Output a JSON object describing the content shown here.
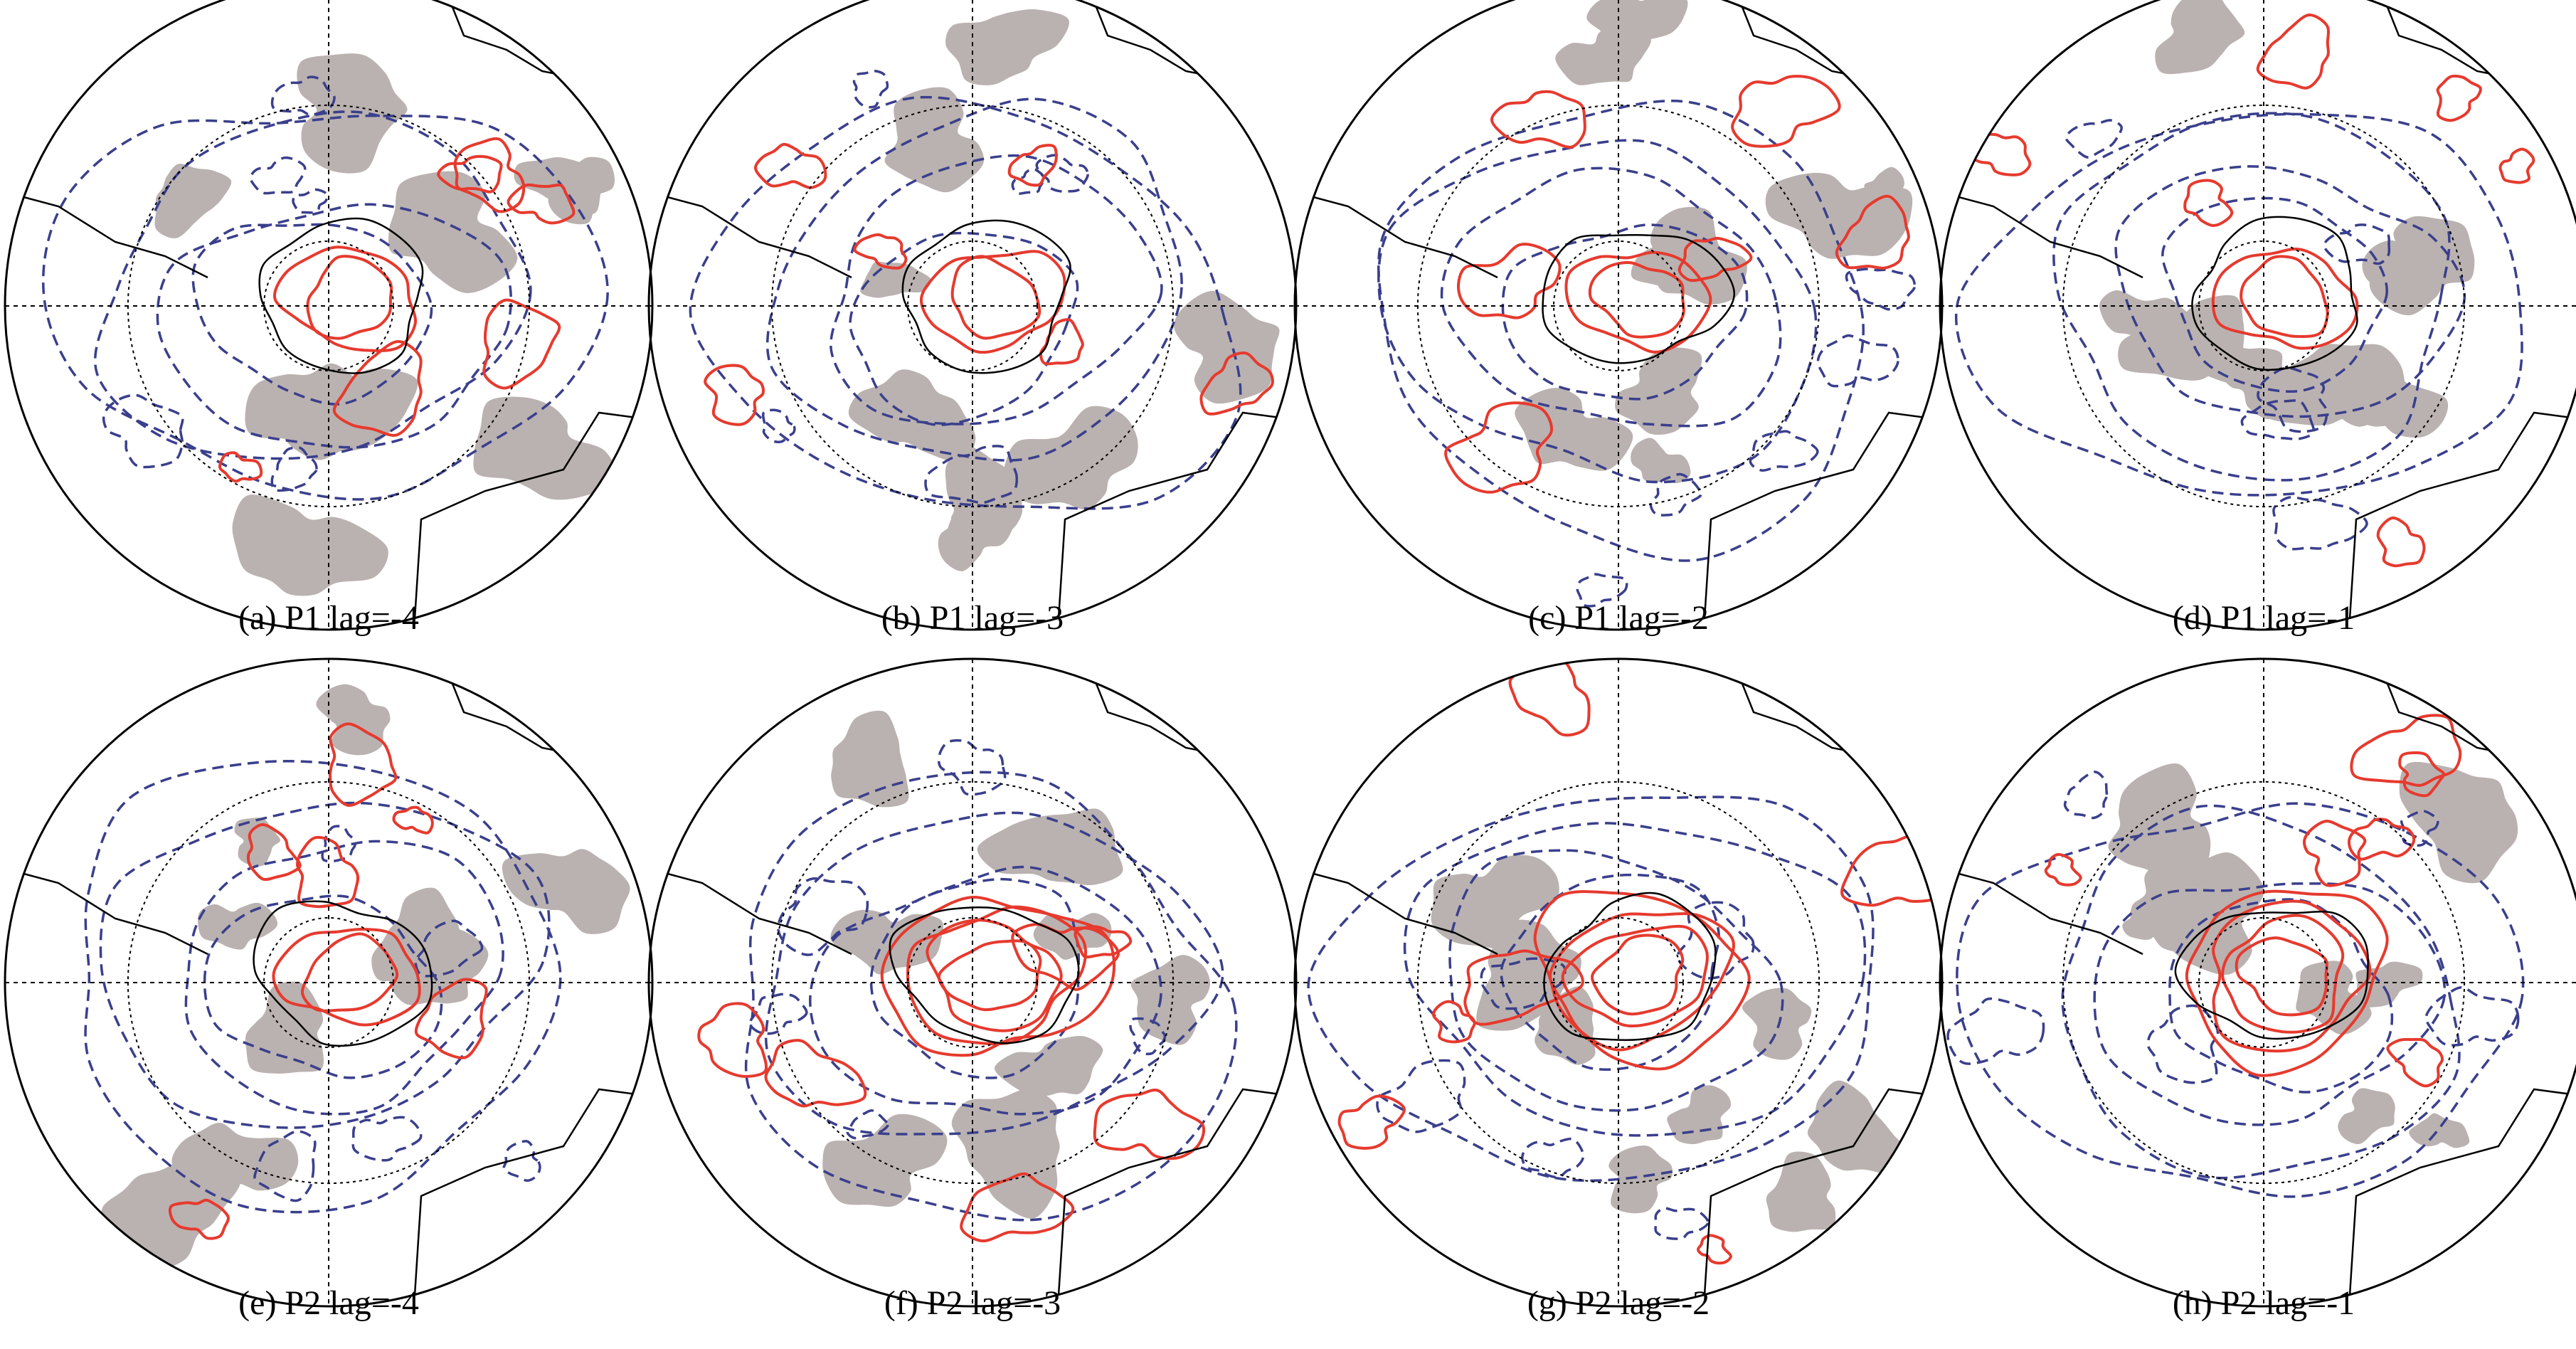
{
  "panels": [
    {
      "caption": "(a) P1 lag=-4"
    },
    {
      "caption": "(b) P1 lag=-3"
    },
    {
      "caption": "(c) P1 lag=-2"
    },
    {
      "caption": "(d) P1 lag=-1"
    },
    {
      "caption": "(e) P2 lag=-4"
    },
    {
      "caption": "(f) P2 lag=-3"
    },
    {
      "caption": "(g) P2 lag=-2"
    },
    {
      "caption": "(h) P2 lag=-1"
    }
  ]
}
